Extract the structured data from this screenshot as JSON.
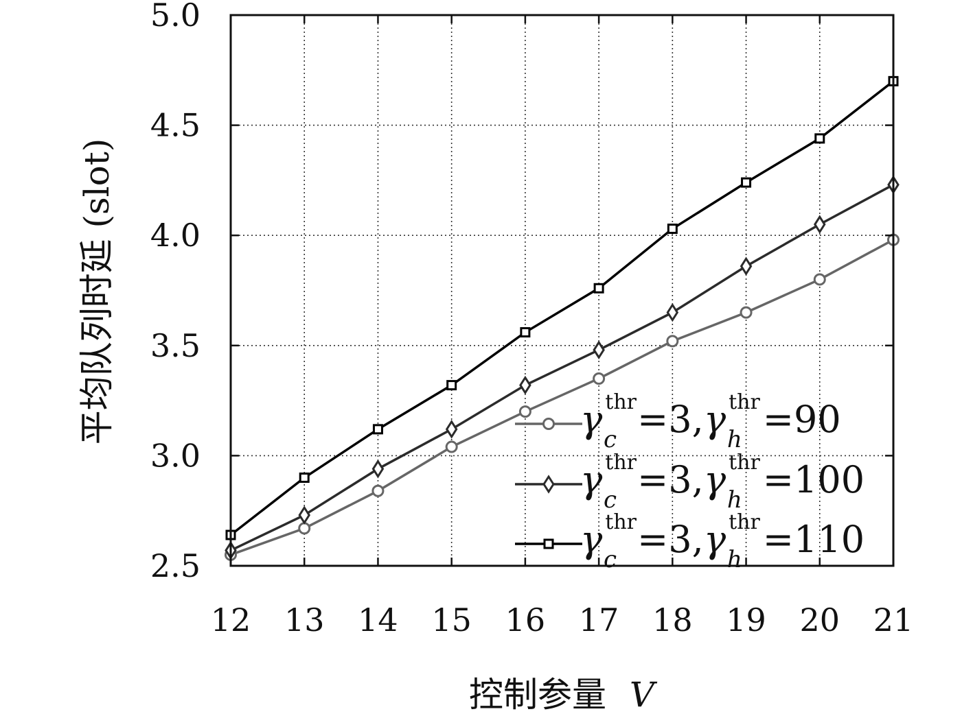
{
  "chart_data": {
    "type": "line",
    "xlabel_text": "控制参量",
    "xlabel_var": "V",
    "ylabel": "平均队列时延 (slot)",
    "x": [
      12,
      13,
      14,
      15,
      16,
      17,
      18,
      19,
      20,
      21
    ],
    "xlim": [
      12,
      21
    ],
    "ylim": [
      2.5,
      5.0
    ],
    "yticks": [
      "2.5",
      "3.0",
      "3.5",
      "4.0",
      "4.5",
      "5.0"
    ],
    "xticks": [
      "12",
      "13",
      "14",
      "15",
      "16",
      "17",
      "18",
      "19",
      "20",
      "21"
    ],
    "grid": true,
    "legend_position": "bottom-right",
    "series": [
      {
        "name": "γ_c^thr=3, γ_h^thr=90",
        "legend_c": "3",
        "legend_h": "90",
        "marker": "circle",
        "color": "#666666",
        "values": [
          2.55,
          2.67,
          2.84,
          3.04,
          3.2,
          3.35,
          3.52,
          3.65,
          3.8,
          3.98
        ]
      },
      {
        "name": "γ_c^thr=3, γ_h^thr=100",
        "legend_c": "3",
        "legend_h": "100",
        "marker": "diamond",
        "color": "#2b2b2b",
        "values": [
          2.57,
          2.73,
          2.94,
          3.12,
          3.32,
          3.48,
          3.65,
          3.86,
          4.05,
          4.23
        ]
      },
      {
        "name": "γ_c^thr=3, γ_h^thr=110",
        "legend_c": "3",
        "legend_h": "110",
        "marker": "square",
        "color": "#000000",
        "values": [
          2.64,
          2.9,
          3.12,
          3.32,
          3.56,
          3.76,
          4.03,
          4.24,
          4.44,
          4.7
        ]
      }
    ],
    "legend_symbols": {
      "gamma": "γ",
      "sub_c": "c",
      "sub_h": "h",
      "sup": "thr",
      "eq": "=",
      "comma": ","
    }
  }
}
